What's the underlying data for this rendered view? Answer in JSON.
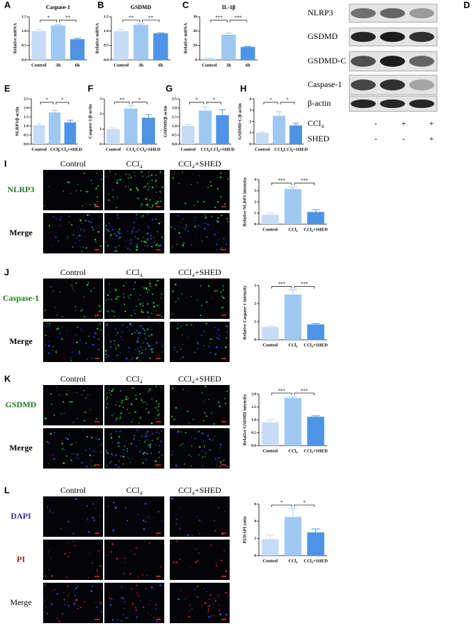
{
  "panel_labels": [
    "A",
    "B",
    "C",
    "D",
    "E",
    "F",
    "G",
    "H",
    "I",
    "J",
    "K",
    "L"
  ],
  "chart_data": [
    {
      "type": "bar",
      "title": "Caspase-1",
      "ylabel": "Relative mRNA",
      "categories": [
        "Control",
        "3h",
        "6h"
      ],
      "values": [
        1.0,
        1.2,
        0.72
      ],
      "errors": [
        0.05,
        0.03,
        0.03
      ],
      "colors": [
        "#c6dbf5",
        "#9ec8f2",
        "#4d94e6"
      ],
      "ylim": [
        0,
        1.5
      ],
      "yticks": [
        {
          "value": 0,
          "label": "0.0"
        },
        0.5,
        {
          "value": 1,
          "label": "1.0"
        },
        1.5
      ],
      "significance": [
        "*",
        "**"
      ]
    },
    {
      "type": "bar",
      "title": "GSDMD",
      "ylabel": "Relative mRNA",
      "categories": [
        "Control",
        "3h",
        "6h"
      ],
      "values": [
        1.0,
        1.22,
        0.92
      ],
      "errors": [
        0.05,
        0.04,
        0.02
      ],
      "colors": [
        "#c6dbf5",
        "#9ec8f2",
        "#4d94e6"
      ],
      "ylim": [
        0,
        1.5
      ],
      "yticks": [
        {
          "value": 0,
          "label": "0.0"
        },
        0.5,
        {
          "value": 1,
          "label": "1.0"
        },
        1.5
      ],
      "significance": [
        "**",
        "**"
      ]
    },
    {
      "type": "bar",
      "title": "IL-1β",
      "ylabel": "Relative mRNA",
      "categories": [
        "Control",
        "3h",
        "6h"
      ],
      "values": [
        1.0,
        17.5,
        9.0
      ],
      "errors": [
        0.3,
        1.2,
        0.3
      ],
      "colors": [
        "#c6dbf5",
        "#9ec8f2",
        "#4d94e6"
      ],
      "ylim": [
        0,
        30
      ],
      "yticks": [
        0,
        10,
        20,
        30
      ],
      "significance": [
        "***",
        "***"
      ]
    },
    {
      "type": "bar",
      "ylabel": "NLRP3/β-actin",
      "categories": [
        "Control",
        "CCl₄",
        "CCl₄+SHED"
      ],
      "values": [
        1.05,
        1.75,
        1.2
      ],
      "errors": [
        0.08,
        0.12,
        0.12
      ],
      "colors": [
        "#c6dbf5",
        "#9ec8f2",
        "#4d94e6"
      ],
      "ylim": [
        0,
        2.5
      ],
      "yticks": [
        {
          "value": 0,
          "label": "0.0"
        },
        0.5,
        {
          "value": 1,
          "label": "1.0"
        },
        1.5,
        {
          "value": 2,
          "label": "2.0"
        },
        2.5
      ],
      "significance": [
        "*",
        "*"
      ]
    },
    {
      "type": "bar",
      "ylabel": "Caspase-1/β-actin",
      "categories": [
        "Control",
        "CCl₄",
        "CCl₄+SHED"
      ],
      "values": [
        1.0,
        2.35,
        1.75
      ],
      "errors": [
        0.08,
        0.2,
        0.2
      ],
      "colors": [
        "#c6dbf5",
        "#9ec8f2",
        "#4d94e6"
      ],
      "ylim": [
        0,
        3
      ],
      "yticks": [
        0,
        1,
        2,
        3
      ],
      "significance": [
        "**",
        "*"
      ]
    },
    {
      "type": "bar",
      "ylabel": "GSDMD/β-actin",
      "categories": [
        "Control",
        "CCl₄",
        "CCl₄+SHED"
      ],
      "values": [
        1.0,
        1.85,
        1.6
      ],
      "errors": [
        0.1,
        0.22,
        0.3
      ],
      "colors": [
        "#c6dbf5",
        "#9ec8f2",
        "#4d94e6"
      ],
      "ylim": [
        0,
        2.5
      ],
      "yticks": [
        {
          "value": 0,
          "label": "0.0"
        },
        0.5,
        {
          "value": 1,
          "label": "1.0"
        },
        1.5,
        {
          "value": 2,
          "label": "2.0"
        },
        2.5
      ],
      "significance": [
        "*",
        "*"
      ]
    },
    {
      "type": "bar",
      "ylabel": "GSDMD-C/β-actin",
      "categories": [
        "Control",
        "CCl₄",
        "CCl₄+SHED"
      ],
      "values": [
        1.0,
        2.5,
        1.65
      ],
      "errors": [
        0.1,
        0.35,
        0.2
      ],
      "colors": [
        "#c6dbf5",
        "#9ec8f2",
        "#4d94e6"
      ],
      "ylim": [
        0,
        4
      ],
      "yticks": [
        0,
        1,
        2,
        3,
        4
      ],
      "significance": [
        "*",
        "*"
      ]
    },
    {
      "type": "bar",
      "ylabel": "Relative NLRP3 intensity",
      "categories": [
        "Control",
        "CCl₄",
        "CCl₄+SHED"
      ],
      "values": [
        0.85,
        3.15,
        1.1
      ],
      "errors": [
        0.15,
        0.2,
        0.2
      ],
      "colors": [
        "#c6dbf5",
        "#9ec8f2",
        "#4d94e6"
      ],
      "ylim": [
        0,
        4
      ],
      "yticks": [
        0,
        1,
        2,
        3,
        4
      ],
      "significance": [
        "***",
        "***"
      ]
    },
    {
      "type": "bar",
      "ylabel": "Relative Caspase-1 intensity",
      "categories": [
        "Control",
        "CCl₄",
        "CCl₄+SHED"
      ],
      "values": [
        0.7,
        2.5,
        0.85
      ],
      "errors": [
        0.05,
        0.25,
        0.05
      ],
      "colors": [
        "#c6dbf5",
        "#9ec8f2",
        "#4d94e6"
      ],
      "ylim": [
        0,
        3
      ],
      "yticks": [
        0,
        1,
        2,
        3
      ],
      "significance": [
        "***",
        "***"
      ]
    },
    {
      "type": "bar",
      "ylabel": "Relative GSDMD intensity",
      "categories": [
        "Control",
        "CCl₄",
        "CCl₄+SHED"
      ],
      "values": [
        0.9,
        1.85,
        1.12
      ],
      "errors": [
        0.1,
        0.05,
        0.04
      ],
      "colors": [
        "#c6dbf5",
        "#9ec8f2",
        "#4d94e6"
      ],
      "ylim": [
        0,
        2
      ],
      "yticks": [
        {
          "value": 0,
          "label": "0.0"
        },
        0.5,
        {
          "value": 1,
          "label": "1.0"
        },
        1.5,
        {
          "value": 2,
          "label": "2.0"
        }
      ],
      "significance": [
        "***",
        "***"
      ]
    },
    {
      "type": "bar",
      "ylabel": "PI/DAPI ratio",
      "categories": [
        "Control",
        "CCl₄",
        "CCl₄+SHED"
      ],
      "values": [
        1.9,
        4.5,
        2.7
      ],
      "errors": [
        0.5,
        1.0,
        0.4
      ],
      "colors": [
        "#c6dbf5",
        "#9ec8f2",
        "#4d94e6"
      ],
      "ylim": [
        0,
        6
      ],
      "yticks": [
        0,
        2,
        4,
        6
      ],
      "significance": [
        "*",
        "*"
      ]
    }
  ],
  "blot": {
    "bands": [
      "NLRP3",
      "GSDMD",
      "GSDMD-C",
      "Caspase-1",
      "β-actin"
    ],
    "treatments": [
      {
        "name": "CCl₄",
        "signs": [
          "-",
          "+",
          "+"
        ]
      },
      {
        "name": "SHED",
        "signs": [
          "-",
          "-",
          "+"
        ]
      }
    ]
  },
  "micrographs": [
    {
      "columns": [
        "Control",
        "CCl₄",
        "CCl₄+SHED"
      ],
      "rows": [
        "NLRP3",
        "Merge"
      ],
      "row_colors": [
        "#1f7a1f",
        "#000000"
      ]
    },
    {
      "columns": [
        "Control",
        "CCl₄",
        "CCl₄+SHED"
      ],
      "rows": [
        "Caspase-1",
        "Merge"
      ],
      "row_colors": [
        "#1f7a1f",
        "#000000"
      ]
    },
    {
      "columns": [
        "Control",
        "CCl₄",
        "CCl₄+SHED"
      ],
      "rows": [
        "GSDMD",
        "Merge"
      ],
      "row_colors": [
        "#1f7a1f",
        "#000000"
      ]
    },
    {
      "columns": [
        "Control",
        "CCl₄",
        "CCl₄+SHED"
      ],
      "rows": [
        "DAPI",
        "PI",
        "Merge"
      ],
      "row_colors": [
        "#2a2ab0",
        "#a01818",
        "#000000"
      ]
    }
  ]
}
